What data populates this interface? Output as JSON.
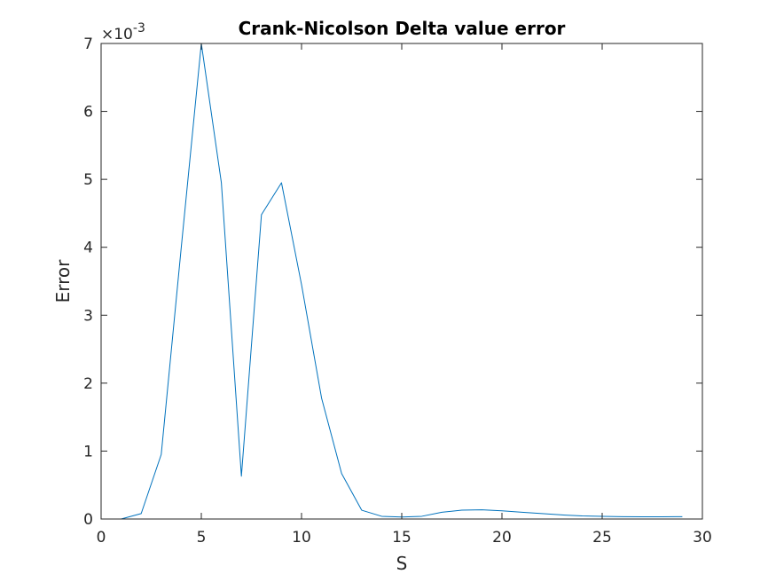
{
  "chart_data": {
    "type": "line",
    "title": "Crank-Nicolson Delta value error",
    "xlabel": "S",
    "ylabel": "Error",
    "xlim": [
      0,
      30
    ],
    "ylim": [
      0,
      7
    ],
    "y_multiplier_base": "×10",
    "y_multiplier_exponent": "-3",
    "xticks": [
      "0",
      "5",
      "10",
      "15",
      "20",
      "25",
      "30"
    ],
    "yticks": [
      "0",
      "1",
      "2",
      "3",
      "4",
      "5",
      "6",
      "7"
    ],
    "grid": false,
    "series": [
      {
        "color": "#0072bd",
        "x": [
          1,
          2,
          3,
          4,
          5,
          6,
          7,
          8,
          9,
          10,
          11,
          12,
          13,
          14,
          15,
          16,
          17,
          18,
          19,
          20,
          21,
          22,
          23,
          24,
          25,
          26,
          27,
          28,
          29
        ],
        "y": [
          0.0,
          0.08,
          0.95,
          4.0,
          7.0,
          4.95,
          0.63,
          4.48,
          4.95,
          3.45,
          1.78,
          0.67,
          0.13,
          0.04,
          0.03,
          0.04,
          0.1,
          0.13,
          0.135,
          0.12,
          0.1,
          0.08,
          0.06,
          0.045,
          0.04,
          0.035,
          0.033,
          0.033,
          0.035
        ]
      }
    ]
  }
}
